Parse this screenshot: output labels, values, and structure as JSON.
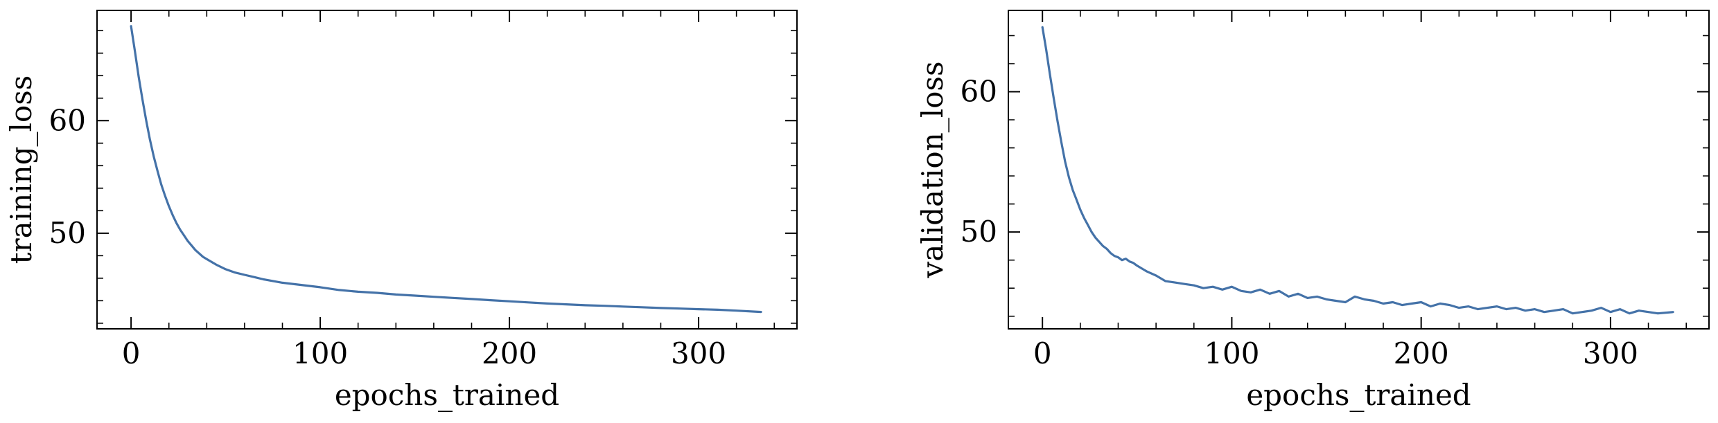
{
  "chart_data": [
    {
      "type": "line",
      "xlabel": "epochs_trained",
      "ylabel": "training_loss",
      "xlim": [
        -18,
        352
      ],
      "ylim": [
        41.5,
        69.8
      ],
      "x_ticks": [
        0,
        100,
        200,
        300
      ],
      "y_ticks": [
        50,
        60
      ],
      "x_minor_step": 20,
      "y_minor_step": 2,
      "color": "#4472a8",
      "grid": false,
      "series": [
        {
          "x": [
            0,
            2,
            4,
            6,
            8,
            10,
            12,
            14,
            16,
            18,
            20,
            22,
            24,
            26,
            28,
            30,
            32,
            34,
            36,
            38,
            40,
            45,
            50,
            55,
            60,
            65,
            70,
            80,
            90,
            100,
            110,
            120,
            130,
            140,
            150,
            160,
            170,
            180,
            190,
            200,
            210,
            220,
            230,
            240,
            250,
            260,
            270,
            280,
            290,
            300,
            310,
            320,
            333
          ],
          "y": [
            68.4,
            66.2,
            63.9,
            61.9,
            60.0,
            58.3,
            56.8,
            55.5,
            54.3,
            53.3,
            52.4,
            51.6,
            50.9,
            50.3,
            49.8,
            49.3,
            48.9,
            48.5,
            48.2,
            47.9,
            47.7,
            47.2,
            46.8,
            46.5,
            46.3,
            46.1,
            45.9,
            45.6,
            45.4,
            45.2,
            44.95,
            44.8,
            44.7,
            44.55,
            44.45,
            44.35,
            44.25,
            44.15,
            44.05,
            43.95,
            43.85,
            43.75,
            43.68,
            43.6,
            43.55,
            43.48,
            43.42,
            43.35,
            43.3,
            43.25,
            43.2,
            43.12,
            43.0
          ]
        }
      ]
    },
    {
      "type": "line",
      "xlabel": "epochs_trained",
      "ylabel": "validation_loss",
      "xlim": [
        -18,
        352
      ],
      "ylim": [
        43.1,
        65.8
      ],
      "x_ticks": [
        0,
        100,
        200,
        300
      ],
      "y_ticks": [
        50,
        60
      ],
      "x_minor_step": 20,
      "y_minor_step": 2,
      "color": "#4472a8",
      "grid": false,
      "series": [
        {
          "x": [
            0,
            2,
            4,
            6,
            8,
            10,
            12,
            14,
            16,
            18,
            20,
            22,
            24,
            26,
            28,
            30,
            32,
            34,
            36,
            38,
            40,
            42,
            44,
            46,
            48,
            50,
            55,
            60,
            65,
            70,
            75,
            80,
            85,
            90,
            95,
            100,
            105,
            110,
            115,
            120,
            125,
            130,
            135,
            140,
            145,
            150,
            155,
            160,
            165,
            170,
            175,
            180,
            185,
            190,
            195,
            200,
            205,
            210,
            215,
            220,
            225,
            230,
            235,
            240,
            245,
            250,
            255,
            260,
            265,
            270,
            275,
            280,
            285,
            290,
            295,
            300,
            305,
            310,
            315,
            320,
            325,
            333
          ],
          "y": [
            64.6,
            63.0,
            61.2,
            59.5,
            57.9,
            56.4,
            55.0,
            53.9,
            53.0,
            52.3,
            51.6,
            51.0,
            50.5,
            50.0,
            49.6,
            49.3,
            49.0,
            48.8,
            48.5,
            48.3,
            48.2,
            48.0,
            48.1,
            47.9,
            47.8,
            47.6,
            47.2,
            46.9,
            46.5,
            46.4,
            46.3,
            46.2,
            46.0,
            46.1,
            45.9,
            46.1,
            45.8,
            45.7,
            45.9,
            45.6,
            45.8,
            45.4,
            45.6,
            45.3,
            45.4,
            45.2,
            45.1,
            45.0,
            45.4,
            45.2,
            45.1,
            44.9,
            45.0,
            44.8,
            44.9,
            45.0,
            44.7,
            44.9,
            44.8,
            44.6,
            44.7,
            44.5,
            44.6,
            44.7,
            44.5,
            44.6,
            44.4,
            44.5,
            44.3,
            44.4,
            44.5,
            44.2,
            44.3,
            44.4,
            44.6,
            44.3,
            44.5,
            44.2,
            44.4,
            44.3,
            44.2,
            44.3
          ]
        }
      ]
    }
  ]
}
